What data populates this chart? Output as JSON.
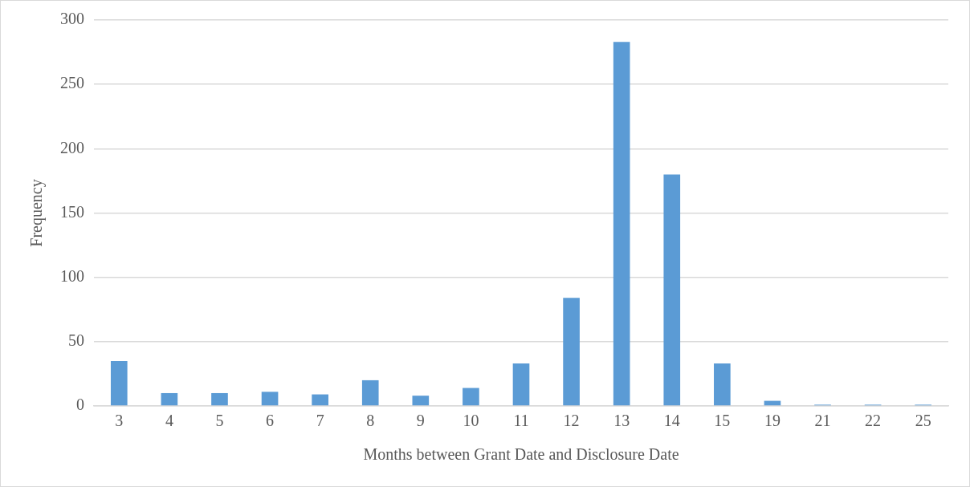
{
  "chart_data": {
    "type": "bar",
    "xlabel": "Months between Grant Date and Disclosure Date",
    "ylabel": "Frequency",
    "categories": [
      "3",
      "4",
      "5",
      "6",
      "7",
      "8",
      "9",
      "10",
      "11",
      "12",
      "13",
      "14",
      "15",
      "19",
      "21",
      "22",
      "25"
    ],
    "values": [
      35,
      10,
      10,
      11,
      9,
      20,
      8,
      14,
      33,
      84,
      283,
      180,
      33,
      4,
      1,
      1,
      1
    ],
    "color": "#5b9bd5",
    "ylim": [
      0,
      300
    ],
    "yticks": [
      0,
      50,
      100,
      150,
      200,
      250,
      300
    ],
    "grid": "y",
    "legend": false
  }
}
